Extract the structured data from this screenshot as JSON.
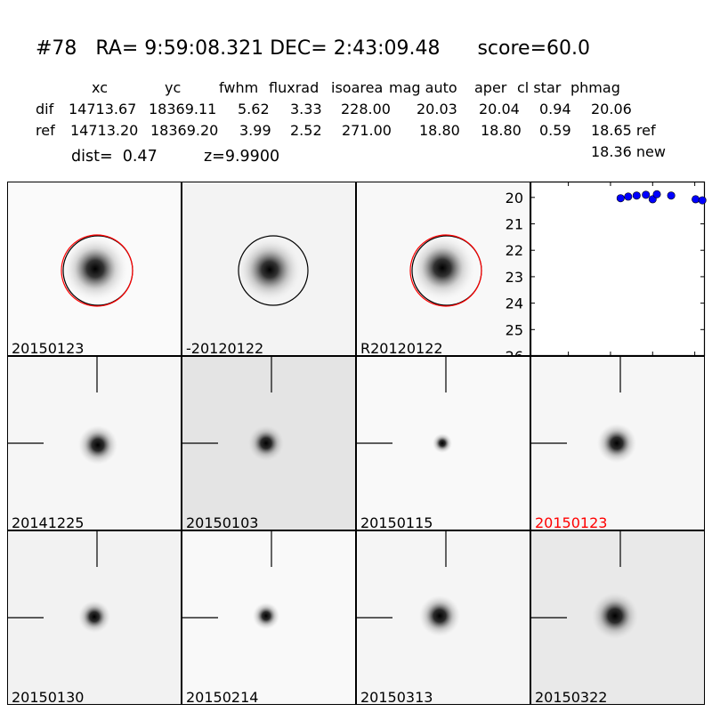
{
  "header": {
    "title": "#78   RA= 9:59:08.321 DEC= 2:43:09.48      score=60.0",
    "columns": [
      "xc",
      "yc",
      "fwhm",
      "fluxrad",
      "isoarea",
      "mag auto",
      "aper",
      "cl star",
      "phmag"
    ],
    "rows": [
      {
        "label": "dif",
        "values": [
          "14713.67",
          "18369.11",
          "5.62",
          "3.33",
          "228.00",
          "20.03",
          "20.04",
          "0.94",
          "20.06"
        ]
      },
      {
        "label": "ref",
        "values": [
          "14713.20",
          "18369.20",
          "3.99",
          "2.52",
          "271.00",
          "18.80",
          "18.80",
          "0.59",
          "18.65 ref"
        ]
      }
    ],
    "extra": "18.36 new",
    "dist": "dist=  0.47",
    "z": "z=9.9900"
  },
  "top_panels": [
    {
      "label": "20150123",
      "circle": "red",
      "bg": "#fafafa"
    },
    {
      "label": "-20120122",
      "circle": "black",
      "bg": "#f3f3f3"
    },
    {
      "label": "R20120122",
      "circle": "red",
      "bg": "#f8f8f8"
    }
  ],
  "stamps": [
    {
      "label": "20141225",
      "red": false,
      "bg": "#f6f6f6"
    },
    {
      "label": "20150103",
      "red": false,
      "bg": "#e4e4e4"
    },
    {
      "label": "20150115",
      "red": false,
      "bg": "#f9f9f9"
    },
    {
      "label": "20150123",
      "red": true,
      "bg": "#f6f6f6"
    },
    {
      "label": "20150130",
      "red": false,
      "bg": "#f2f2f2"
    },
    {
      "label": "20150214",
      "red": false,
      "bg": "#f9f9f9"
    },
    {
      "label": "20150313",
      "red": false,
      "bg": "#f5f5f5"
    },
    {
      "label": "20150322",
      "red": false,
      "bg": "#e9e9e9"
    }
  ],
  "chart_data": {
    "type": "scatter",
    "x": [
      -38,
      -29,
      -19,
      -8,
      0,
      5,
      22,
      51,
      59
    ],
    "y": [
      20.03,
      19.97,
      19.93,
      19.9,
      20.07,
      19.88,
      19.93,
      20.07,
      20.11
    ],
    "xlim": [
      -145,
      62
    ],
    "ylim": [
      26,
      19.4
    ],
    "xticks": [
      -100,
      -50,
      0,
      50
    ],
    "yticks": [
      20,
      21,
      22,
      23,
      24,
      25,
      26
    ],
    "marker_color": "#0000ff",
    "title": "",
    "xlabel": "",
    "ylabel": ""
  }
}
